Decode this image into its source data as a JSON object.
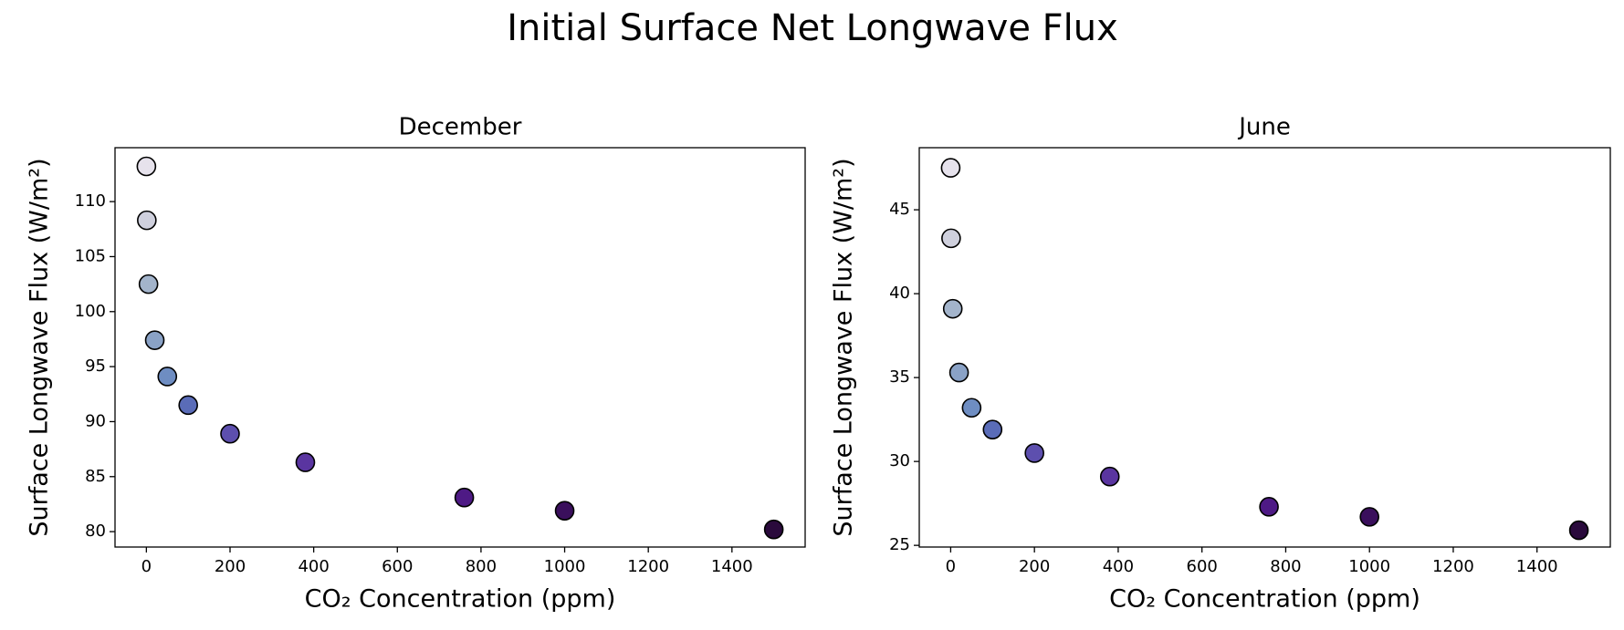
{
  "title": "Initial Surface Net Longwave Flux",
  "chart_data": [
    {
      "type": "scatter",
      "title": "December",
      "xlabel": "CO₂ Concentration (ppm)",
      "ylabel": "Surface Longwave Flux (W/m²)",
      "x": [
        0,
        1,
        5,
        20,
        50,
        100,
        200,
        380,
        760,
        1000,
        1500
      ],
      "y": [
        113.2,
        108.3,
        102.5,
        97.4,
        94.1,
        91.5,
        88.9,
        86.3,
        83.1,
        81.9,
        80.2
      ],
      "colors": [
        "#e6e2ec",
        "#cfd0dd",
        "#a3b4cb",
        "#8aa2c6",
        "#6e8dc2",
        "#5a6cb8",
        "#5d4fae",
        "#5a35a0",
        "#4e1a85",
        "#3a0f5c",
        "#2a0a3c"
      ],
      "xlim": [
        -75,
        1575
      ],
      "ylim": [
        78.6,
        114.9
      ],
      "xticks": [
        0,
        200,
        400,
        600,
        800,
        1000,
        1200,
        1400
      ],
      "yticks": [
        80,
        85,
        90,
        95,
        100,
        105,
        110
      ]
    },
    {
      "type": "scatter",
      "title": "June",
      "xlabel": "CO₂ Concentration (ppm)",
      "ylabel": "Surface Longwave Flux (W/m²)",
      "x": [
        0,
        1,
        5,
        20,
        50,
        100,
        200,
        380,
        760,
        1000,
        1500
      ],
      "y": [
        47.5,
        43.3,
        39.1,
        35.3,
        33.2,
        31.9,
        30.5,
        29.1,
        27.3,
        26.7,
        25.9
      ],
      "colors": [
        "#e6e2ec",
        "#cfd0dd",
        "#a3b4cb",
        "#8aa2c6",
        "#6e8dc2",
        "#5a6cb8",
        "#5d4fae",
        "#5a35a0",
        "#4e1a85",
        "#3a0f5c",
        "#2a0a3c"
      ],
      "xlim": [
        -75,
        1575
      ],
      "ylim": [
        24.9,
        48.7
      ],
      "xticks": [
        0,
        200,
        400,
        600,
        800,
        1000,
        1200,
        1400
      ],
      "yticks": [
        25,
        30,
        35,
        40,
        45
      ]
    }
  ]
}
